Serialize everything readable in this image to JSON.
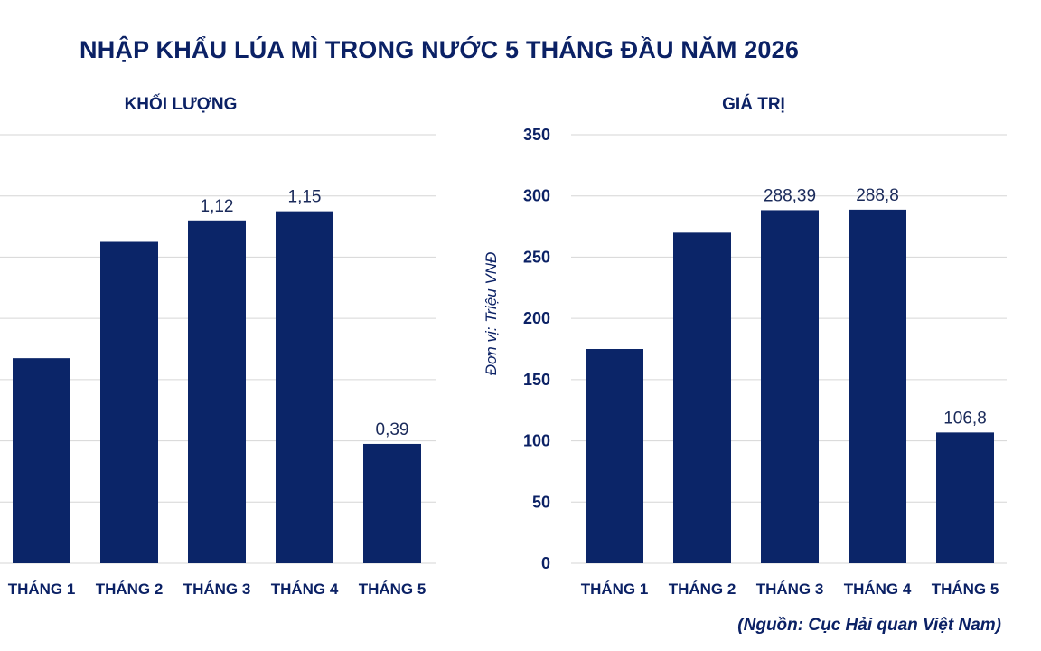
{
  "title": "NHẬP KHẨU LÚA MÌ TRONG NƯỚC 5 THÁNG ĐẦU NĂM 2026",
  "source": "(Nguồn: Cục Hải quan Việt Nam)",
  "colors": {
    "bar": "#0b2568",
    "text": "#0b2165",
    "grid": "#d6d6d6"
  },
  "chart_data": [
    {
      "type": "bar",
      "title": "KHỐI LƯỢNG",
      "categories": [
        "THÁNG 1",
        "THÁNG 2",
        "THÁNG 3",
        "THÁNG 4",
        "THÁNG 5"
      ],
      "values": [
        0.67,
        1.05,
        1.12,
        1.15,
        0.39
      ],
      "data_labels": [
        "",
        "",
        "1,12",
        "1,15",
        "0,39"
      ],
      "ylim": [
        0,
        1.4
      ],
      "yticks": [
        0,
        0.2,
        0.4,
        0.6,
        0.8,
        1.0,
        1.2,
        1.4
      ],
      "ytick_labels_visible": false,
      "ylabel": "",
      "grid": true
    },
    {
      "type": "bar",
      "title": "GIÁ TRỊ",
      "categories": [
        "THÁNG 1",
        "THÁNG 2",
        "THÁNG 3",
        "THÁNG 4",
        "THÁNG 5"
      ],
      "values": [
        175,
        270,
        288.39,
        288.8,
        106.8
      ],
      "data_labels": [
        "",
        "",
        "288,39",
        "288,8",
        "106,8"
      ],
      "ylim": [
        0,
        350
      ],
      "yticks": [
        0,
        50,
        100,
        150,
        200,
        250,
        300,
        350
      ],
      "ytick_labels": [
        "0",
        "50",
        "100",
        "150",
        "200",
        "250",
        "300",
        "350"
      ],
      "ytick_labels_visible": true,
      "ylabel": "Đơn vị: Triệu VNĐ",
      "grid": true
    }
  ]
}
